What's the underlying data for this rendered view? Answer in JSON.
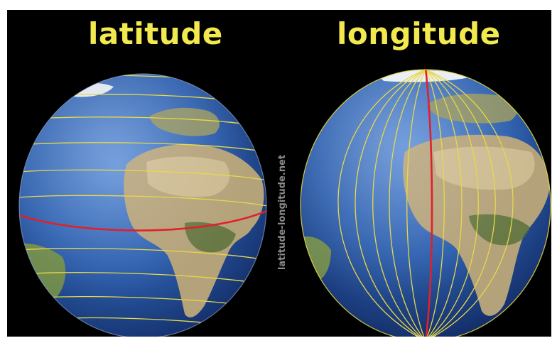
{
  "titles": {
    "left": "latitude",
    "right": "longitude"
  },
  "watermark": "latitude-longitude.net",
  "colors": {
    "background": "#000000",
    "title": "#f2e94e",
    "ocean": "#1f4f9a",
    "land": "#b8a77e",
    "grid_line": "#e8d84a",
    "reference_line": "#e0202a",
    "watermark": "#8a8a8a"
  },
  "globes": [
    {
      "name": "latitude-globe",
      "lines": "parallels",
      "reference": "equator"
    },
    {
      "name": "longitude-globe",
      "lines": "meridians",
      "reference": "prime-meridian"
    }
  ]
}
